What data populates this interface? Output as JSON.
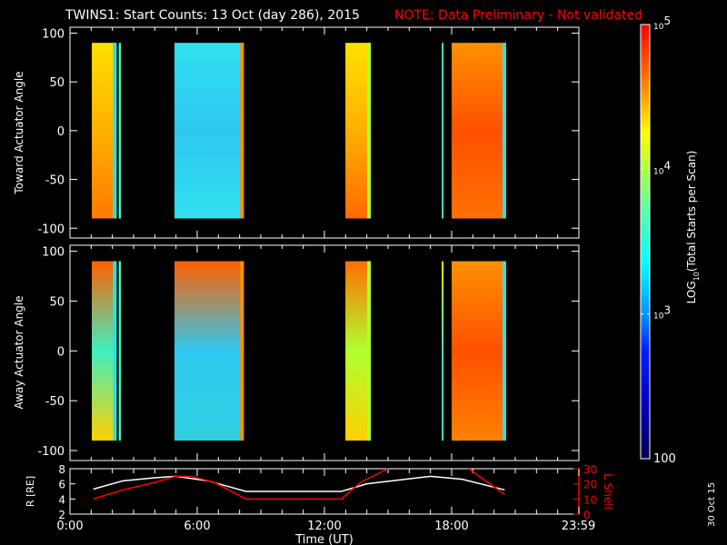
{
  "title": "TWINS1: Start Counts: 13 Oct (day 286), 2015",
  "note": "NOTE: Data Preliminary - Not validated",
  "date_stamp": "30 Oct 15",
  "colors": {
    "note": "#ff0000",
    "axis": "#ffffff",
    "lshell": "#ff0000",
    "background": "#000000"
  },
  "chart_data": [
    {
      "type": "heatmap",
      "name": "toward",
      "ylabel": "Toward Actuator Angle",
      "ylim": [
        -110,
        106
      ],
      "yticks": [
        100,
        50,
        0,
        -50,
        -100
      ],
      "data_range": [
        -90,
        90
      ],
      "blocks": [
        {
          "t0": 1.03,
          "t1": 2.2,
          "colors": [
            "#ffe000",
            "#ffb000",
            "#ff7a00"
          ],
          "edge": "#30e0e0"
        },
        {
          "t0": 2.3,
          "t1": 2.4,
          "colors": [
            "#40ffc0",
            "#40ffc0",
            "#40ffc0"
          ]
        },
        {
          "t0": 4.93,
          "t1": 8.2,
          "colors": [
            "#30e0f0",
            "#30c8f0",
            "#30e0f0"
          ],
          "edge": "#ff9000"
        },
        {
          "t0": 12.99,
          "t1": 14.19,
          "colors": [
            "#ffe000",
            "#ffb000",
            "#ff6a00"
          ],
          "edge": "#b0ff30"
        },
        {
          "t0": 17.53,
          "t1": 17.62,
          "colors": [
            "#40e0c0",
            "#40e0c0",
            "#40e0c0"
          ]
        },
        {
          "t0": 18.0,
          "t1": 20.57,
          "colors": [
            "#ff9000",
            "#ff5000",
            "#ff7000"
          ],
          "edge": "#30e0e0"
        }
      ]
    },
    {
      "type": "heatmap",
      "name": "away",
      "ylabel": "Away Actuator Angle",
      "ylim": [
        -110,
        106
      ],
      "yticks": [
        100,
        50,
        0,
        -50,
        -100
      ],
      "data_range": [
        -90,
        90
      ],
      "blocks": [
        {
          "t0": 1.03,
          "t1": 2.2,
          "colors": [
            "#ff6000",
            "#40f0c0",
            "#ffd000"
          ],
          "edge": "#30e0e0"
        },
        {
          "t0": 2.3,
          "t1": 2.4,
          "colors": [
            "#40ffc0",
            "#40ffc0",
            "#40ffc0"
          ]
        },
        {
          "t0": 4.93,
          "t1": 8.2,
          "colors": [
            "#ff6000",
            "#30c8f0",
            "#30d0e0"
          ],
          "edge": "#ff9000"
        },
        {
          "t0": 12.99,
          "t1": 14.19,
          "colors": [
            "#ff7000",
            "#b0ff30",
            "#ffd000"
          ],
          "edge": "#b0ff30"
        },
        {
          "t0": 17.53,
          "t1": 17.62,
          "colors": [
            "#ffe000",
            "#40e0c0",
            "#40e0c0"
          ]
        },
        {
          "t0": 18.0,
          "t1": 20.57,
          "colors": [
            "#ff9000",
            "#ff5000",
            "#ff8000"
          ],
          "edge": "#30e0e0"
        }
      ]
    },
    {
      "type": "line",
      "name": "orbit",
      "xlabel": "Time (UT)",
      "xlim": [
        0,
        24
      ],
      "xticklabels": [
        "0:00",
        "6:00",
        "12:00",
        "18:00",
        "23:59"
      ],
      "xticks": [
        0,
        6,
        12,
        18,
        23.98
      ],
      "ylabel": "R [RE]",
      "ylim": [
        2,
        8
      ],
      "yticks": [
        2,
        4,
        6,
        8
      ],
      "y2label": "L Shell",
      "y2lim": [
        0,
        30
      ],
      "y2ticks": [
        0,
        10,
        20,
        30
      ],
      "series": [
        {
          "name": "R",
          "axis": "left",
          "color": "#ffffff",
          "x": [
            1.1,
            2.5,
            4.0,
            5.0,
            6.5,
            8.3,
            12.8,
            14.0,
            15.5,
            17.0,
            18.5,
            20.5
          ],
          "y": [
            5.3,
            6.4,
            6.8,
            7.0,
            6.4,
            5.0,
            5.0,
            6.0,
            6.5,
            7.0,
            6.6,
            5.2
          ]
        },
        {
          "name": "L Shell",
          "axis": "right",
          "color": "#ff0000",
          "segments": [
            {
              "x": [
                1.1,
                2.5,
                4.0,
                5.0,
                5.7,
                6.8,
                8.3,
                12.8,
                13.7,
                15.0
              ],
              "y": [
                10,
                16,
                21,
                25,
                25,
                21,
                10,
                10,
                21,
                30
              ]
            },
            {
              "x": [
                18.8,
                20.5
              ],
              "y": [
                30,
                13
              ]
            }
          ]
        }
      ]
    },
    {
      "type": "colorbar",
      "label": "LOG10(Total Starts per Scan)",
      "label_main": "LOG",
      "label_sub": "10",
      "label_rest": "(Total Starts per Scan)",
      "range": [
        100,
        100000
      ],
      "ticks": [
        {
          "value": 100000,
          "base": "10",
          "exp": "5"
        },
        {
          "value": 10000,
          "base": "10",
          "exp": "4"
        },
        {
          "value": 1000,
          "base": "10",
          "exp": "3"
        },
        {
          "value": 100,
          "base": "100",
          "exp": ""
        }
      ]
    }
  ]
}
